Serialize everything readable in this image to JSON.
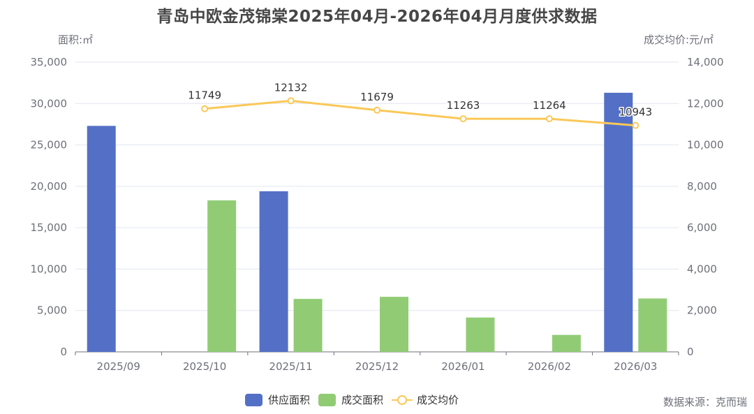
{
  "title": "青岛中欧金茂锦棠2025年04月-2026年04月月度供求数据",
  "source": "数据来源：克而瑞",
  "chart_data": {
    "type": "bar",
    "title": "青岛中欧金茂锦棠2025年04月-2026年04月月度供求数据",
    "categories": [
      "2025/09",
      "2025/10",
      "2025/11",
      "2025/12",
      "2026/01",
      "2026/02",
      "2026/03"
    ],
    "ylabel": "面积:㎡",
    "y2label": "成交均价:元/㎡",
    "ylim": [
      0,
      35000
    ],
    "y2lim": [
      0,
      14000
    ],
    "yticks": [
      "0",
      "5,000",
      "10,000",
      "15,000",
      "20,000",
      "25,000",
      "30,000",
      "35,000"
    ],
    "y2ticks": [
      "0",
      "2,000",
      "4,000",
      "6,000",
      "8,000",
      "10,000",
      "12,000",
      "14,000"
    ],
    "grid": true,
    "legend_position": "bottom",
    "series": [
      {
        "name": "供应面积",
        "type": "bar",
        "axis": "left",
        "color": "#5470c6",
        "values": [
          27300,
          null,
          19400,
          null,
          null,
          null,
          31300
        ]
      },
      {
        "name": "成交面积",
        "type": "bar",
        "axis": "left",
        "color": "#91cc75",
        "values": [
          null,
          18300,
          6400,
          6650,
          4150,
          2050,
          6450
        ]
      },
      {
        "name": "成交均价",
        "type": "line",
        "axis": "right",
        "color": "#fac858",
        "values": [
          null,
          11749,
          12132,
          11679,
          11263,
          11264,
          10943
        ],
        "labels": [
          "",
          "11749",
          "12132",
          "11679",
          "11263",
          "11264",
          "10943"
        ]
      }
    ]
  },
  "legend": [
    {
      "label": "供应面积",
      "color": "#5470c6",
      "kind": "bar"
    },
    {
      "label": "成交面积",
      "color": "#91cc75",
      "kind": "bar"
    },
    {
      "label": "成交均价",
      "color": "#fac858",
      "kind": "line"
    }
  ]
}
